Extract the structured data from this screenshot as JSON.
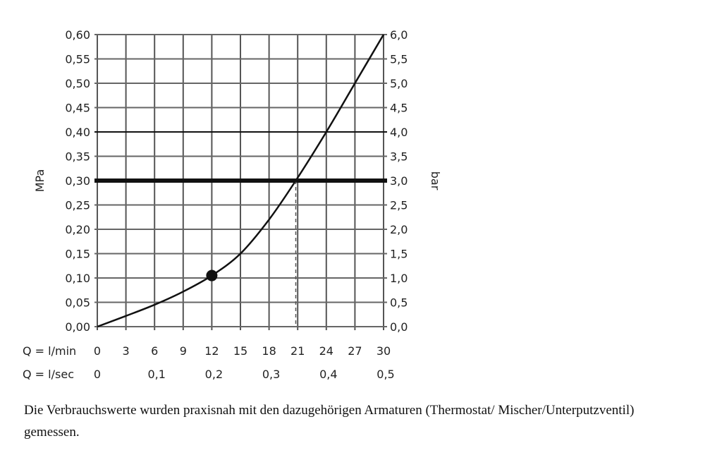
{
  "chart_data": {
    "type": "line",
    "title": "",
    "xlabel": "Q = l/min",
    "xlabel_secondary": "Q = l/sec",
    "ylabel": "MPa",
    "ylabel_right": "bar",
    "xlim": [
      0,
      30
    ],
    "ylim": [
      0,
      0.6
    ],
    "grid": true,
    "x_ticks": [
      "0",
      "3",
      "6",
      "9",
      "12",
      "15",
      "18",
      "21",
      "24",
      "27",
      "30"
    ],
    "x_ticks_values": [
      0,
      3,
      6,
      9,
      12,
      15,
      18,
      21,
      24,
      27,
      30
    ],
    "x2_ticks": [
      "0",
      "0,1",
      "0,2",
      "0,3",
      "0,4",
      "0,5"
    ],
    "x2_ticks_values": [
      0,
      6,
      12,
      18,
      24,
      30
    ],
    "y_ticks": [
      "0,00",
      "0,05",
      "0,10",
      "0,15",
      "0,20",
      "0,25",
      "0,30",
      "0,35",
      "0,40",
      "0,45",
      "0,50",
      "0,55",
      "0,60"
    ],
    "y_right_ticks": [
      "0,0",
      "0,5",
      "1,0",
      "1,5",
      "2,0",
      "2,5",
      "3,0",
      "3,5",
      "4,0",
      "4,5",
      "5,0",
      "5,5",
      "6,0"
    ],
    "series": [
      {
        "name": "flow curve",
        "x": [
          0,
          3,
          6,
          9,
          12,
          15,
          18,
          20.8,
          24,
          27,
          30
        ],
        "y": [
          0,
          0.022,
          0.045,
          0.072,
          0.105,
          0.15,
          0.22,
          0.3,
          0.4,
          0.5,
          0.6
        ]
      }
    ],
    "highlight_point": {
      "x": 12,
      "y": 0.105
    },
    "reference_line_y": 0.3,
    "emphasized_line_y": 0.4,
    "dashed_drop_x": 20.8
  },
  "caption": "Die Verbrauchswerte wurden praxisnah mit den dazugehörigen Armaturen (Thermostat/ Mischer/Unterputzventil) gemessen."
}
